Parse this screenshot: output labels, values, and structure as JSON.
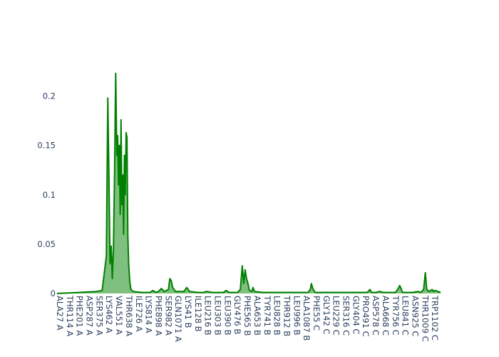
{
  "chart_data": {
    "type": "area",
    "title": "",
    "xlabel": "",
    "ylabel": "",
    "ylim": [
      0,
      0.225
    ],
    "y_ticks": [
      0,
      0.05,
      0.1,
      0.15,
      0.2
    ],
    "y_tick_labels": [
      "0",
      "0.05",
      "0.1",
      "0.15",
      "0.2"
    ],
    "grid": false,
    "legend": "none",
    "line_color": "#008000",
    "fill_color": "rgba(0,128,0,0.5)",
    "x_tick_labels": [
      "ALA27 A",
      "THR114 A",
      "PHE201 A",
      "ASP287 A",
      "SER375 A",
      "LYS462 A",
      "VAL551 A",
      "THR638 A",
      "ILE726 A",
      "LYS814 A",
      "PHE898 A",
      "SER982 A",
      "GLN1071 A",
      "LYS41 B",
      "ILE128 B",
      "LEU216 B",
      "LEU303 B",
      "LEU390 B",
      "GLY476 B",
      "PHE565 B",
      "ALA653 B",
      "TYR741 B",
      "LEU828 B",
      "THR912 B",
      "LEU996 B",
      "ALA1087 B",
      "PHE55 C",
      "GLY142 C",
      "LEU229 C",
      "SER316 C",
      "GLY404 C",
      "PRO491 C",
      "ASP578 C",
      "ALA668 C",
      "TYR756 C",
      "LEU841 C",
      "ASN925 C",
      "THR1009 C",
      "TRP1102 C"
    ],
    "series": [
      {
        "values": [
          [
            0,
            0
          ],
          [
            8,
            0.001
          ],
          [
            14,
            0.002
          ],
          [
            16,
            0.003
          ],
          [
            17.5,
            0.038
          ],
          [
            18,
            0.198
          ],
          [
            18.4,
            0.12
          ],
          [
            18.8,
            0.03
          ],
          [
            19.2,
            0.048
          ],
          [
            19.6,
            0.015
          ],
          [
            20,
            0.045
          ],
          [
            20.4,
            0.12
          ],
          [
            20.8,
            0.223
          ],
          [
            21.2,
            0.14
          ],
          [
            21.5,
            0.16
          ],
          [
            21.8,
            0.11
          ],
          [
            22.1,
            0.15
          ],
          [
            22.4,
            0.08
          ],
          [
            22.7,
            0.176
          ],
          [
            23,
            0.09
          ],
          [
            23.3,
            0.12
          ],
          [
            23.6,
            0.06
          ],
          [
            23.9,
            0.14
          ],
          [
            24.2,
            0.1
          ],
          [
            24.5,
            0.163
          ],
          [
            24.8,
            0.158
          ],
          [
            25.1,
            0.06
          ],
          [
            25.4,
            0.03
          ],
          [
            25.8,
            0.012
          ],
          [
            26.2,
            0.004
          ],
          [
            27,
            0.002
          ],
          [
            30,
            0.001
          ],
          [
            33,
            0.001
          ],
          [
            34,
            0.003
          ],
          [
            35,
            0.001
          ],
          [
            36,
            0.002
          ],
          [
            37,
            0.005
          ],
          [
            38,
            0.002
          ],
          [
            39.5,
            0.004
          ],
          [
            40,
            0.015
          ],
          [
            40.5,
            0.013
          ],
          [
            41,
            0.006
          ],
          [
            42,
            0.002
          ],
          [
            45,
            0.002
          ],
          [
            46,
            0.006
          ],
          [
            46.5,
            0.004
          ],
          [
            47,
            0.002
          ],
          [
            50,
            0.001
          ],
          [
            52,
            0.001
          ],
          [
            53,
            0.002
          ],
          [
            55,
            0.001
          ],
          [
            59,
            0.001
          ],
          [
            60,
            0.003
          ],
          [
            61,
            0.001
          ],
          [
            64,
            0.001
          ],
          [
            65,
            0.004
          ],
          [
            65.7,
            0.028
          ],
          [
            66.2,
            0.01
          ],
          [
            66.7,
            0.024
          ],
          [
            67.2,
            0.015
          ],
          [
            67.7,
            0.01
          ],
          [
            68.2,
            0.003
          ],
          [
            69,
            0.002
          ],
          [
            69.5,
            0.006
          ],
          [
            70,
            0.002
          ],
          [
            73,
            0.001
          ],
          [
            85,
            0.001
          ],
          [
            89,
            0.001
          ],
          [
            89.8,
            0.004
          ],
          [
            90.2,
            0.01
          ],
          [
            90.7,
            0.005
          ],
          [
            91.5,
            0.001
          ],
          [
            95,
            0.001
          ],
          [
            105,
            0.001
          ],
          [
            110,
            0.001
          ],
          [
            111,
            0.004
          ],
          [
            111.5,
            0.001
          ],
          [
            113,
            0.001
          ],
          [
            114.5,
            0.002
          ],
          [
            115.5,
            0.001
          ],
          [
            120,
            0.001
          ],
          [
            121,
            0.005
          ],
          [
            121.5,
            0.008
          ],
          [
            122,
            0.005
          ],
          [
            122.5,
            0.001
          ],
          [
            126,
            0.001
          ],
          [
            128,
            0.002
          ],
          [
            129,
            0.001
          ],
          [
            130,
            0.004
          ],
          [
            130.6,
            0.021
          ],
          [
            131.1,
            0.004
          ],
          [
            132,
            0.002
          ],
          [
            133,
            0.004
          ],
          [
            133.5,
            0.002
          ],
          [
            134,
            0.003
          ],
          [
            135,
            0.002
          ],
          [
            136,
            0.001
          ]
        ]
      }
    ]
  }
}
